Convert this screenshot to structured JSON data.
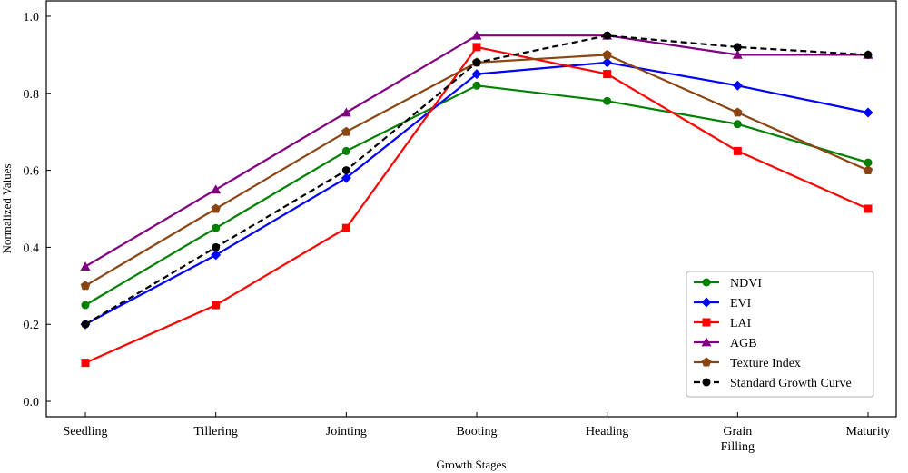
{
  "chart_data": {
    "type": "line",
    "xlabel": "Growth Stages",
    "ylabel": "Normalized Values",
    "categories": [
      "Seedling",
      "Tillering",
      "Jointing",
      "Booting",
      "Heading",
      "Grain Filling",
      "Maturity"
    ],
    "category_labels": [
      [
        "Seedling"
      ],
      [
        "Tillering"
      ],
      [
        "Jointing"
      ],
      [
        "Booting"
      ],
      [
        "Heading"
      ],
      [
        "Grain",
        "Filling"
      ],
      [
        "Maturity"
      ]
    ],
    "ylim": [
      -0.04,
      1.04
    ],
    "yticks": [
      0.0,
      0.2,
      0.4,
      0.6,
      0.8,
      1.0
    ],
    "ytick_labels": [
      "0.0",
      "0.2",
      "0.4",
      "0.6",
      "0.8",
      "1.0"
    ],
    "grid": false,
    "legend_position": "lower-right",
    "series": [
      {
        "name": "NDVI",
        "values": [
          0.25,
          0.45,
          0.65,
          0.82,
          0.78,
          0.72,
          0.62
        ],
        "color": "#008000",
        "marker": "circle",
        "dashed": false
      },
      {
        "name": "EVI",
        "values": [
          0.2,
          0.38,
          0.58,
          0.85,
          0.88,
          0.82,
          0.75
        ],
        "color": "#0000ff",
        "marker": "diamond",
        "dashed": false
      },
      {
        "name": "LAI",
        "values": [
          0.1,
          0.25,
          0.45,
          0.92,
          0.85,
          0.65,
          0.5
        ],
        "color": "#ff0000",
        "marker": "square",
        "dashed": false
      },
      {
        "name": "AGB",
        "values": [
          0.35,
          0.55,
          0.75,
          0.95,
          0.95,
          0.9,
          0.9
        ],
        "color": "#800080",
        "marker": "triangle",
        "dashed": false
      },
      {
        "name": "Texture Index",
        "values": [
          0.3,
          0.5,
          0.7,
          0.88,
          0.9,
          0.75,
          0.6
        ],
        "color": "#8b4513",
        "marker": "pentagon",
        "dashed": false
      },
      {
        "name": "Standard Growth Curve",
        "values": [
          0.2,
          0.4,
          0.6,
          0.88,
          0.95,
          0.92,
          0.9
        ],
        "color": "#000000",
        "marker": "circle",
        "dashed": true
      }
    ]
  }
}
